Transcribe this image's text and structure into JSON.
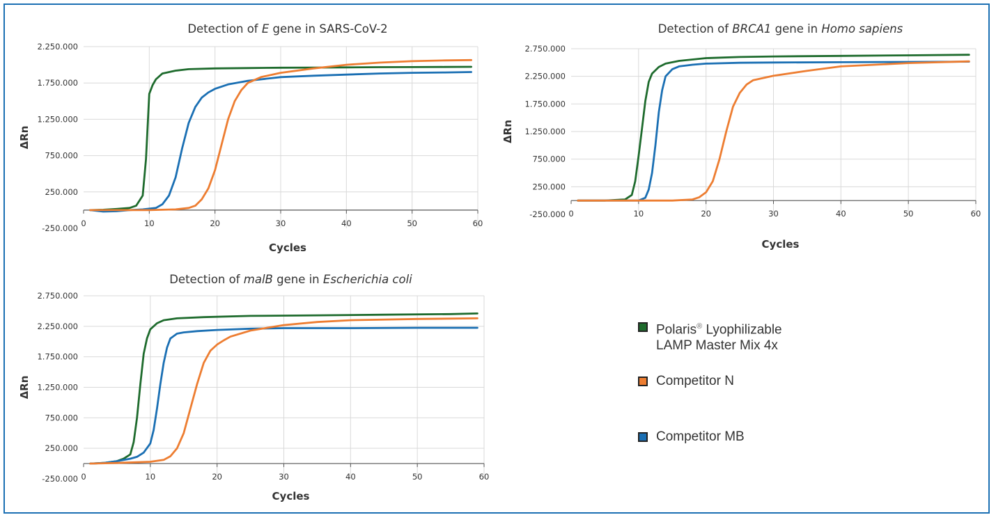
{
  "chart_data": [
    {
      "type": "line",
      "title_parts": [
        {
          "t": "Detection of "
        },
        {
          "t": "E",
          "i": true
        },
        {
          "t": " gene in SARS-CoV-2"
        }
      ],
      "xlabel": "Cycles",
      "ylabel": "ΔRn",
      "xlim": [
        0,
        60
      ],
      "ylim": [
        -250000,
        2250000
      ],
      "xticks": [
        "0",
        "10",
        "20",
        "30",
        "40",
        "50",
        "60"
      ],
      "yticks": [
        "-250.000",
        "250.000",
        "750.000",
        "1.250.000",
        "1.750.000",
        "2.250.000"
      ],
      "grid": true,
      "series": [
        {
          "color": "#1e6b2d",
          "x": [
            1,
            3,
            5,
            7,
            8,
            9,
            9.5,
            10,
            10.5,
            11,
            12,
            14,
            16,
            20,
            25,
            30,
            35,
            40,
            45,
            50,
            55,
            59
          ],
          "y": [
            0,
            5000,
            15000,
            30000,
            60000,
            200000,
            700000,
            1600000,
            1720000,
            1800000,
            1880000,
            1920000,
            1940000,
            1950000,
            1955000,
            1960000,
            1962000,
            1965000,
            1967000,
            1968000,
            1970000,
            1972000
          ]
        },
        {
          "color": "#1a6fb3",
          "x": [
            1,
            3,
            5,
            7,
            9,
            11,
            12,
            13,
            14,
            15,
            16,
            17,
            18,
            19,
            20,
            22,
            25,
            30,
            35,
            40,
            45,
            50,
            55,
            59
          ],
          "y": [
            0,
            -20000,
            -15000,
            0,
            10000,
            30000,
            80000,
            200000,
            450000,
            850000,
            1200000,
            1420000,
            1550000,
            1620000,
            1670000,
            1730000,
            1780000,
            1830000,
            1850000,
            1865000,
            1880000,
            1890000,
            1895000,
            1900000
          ]
        },
        {
          "color": "#ed7d31",
          "x": [
            1,
            5,
            10,
            14,
            16,
            17,
            18,
            19,
            20,
            21,
            22,
            23,
            24,
            25,
            27,
            30,
            35,
            40,
            45,
            50,
            55,
            59
          ],
          "y": [
            0,
            0,
            0,
            10000,
            30000,
            60000,
            150000,
            300000,
            550000,
            900000,
            1250000,
            1500000,
            1650000,
            1750000,
            1830000,
            1890000,
            1950000,
            2000000,
            2030000,
            2050000,
            2060000,
            2065000
          ]
        }
      ]
    },
    {
      "type": "line",
      "title_parts": [
        {
          "t": "Detection of "
        },
        {
          "t": "BRCA1",
          "i": true
        },
        {
          "t": " gene in "
        },
        {
          "t": "Homo sapiens",
          "i": true
        }
      ],
      "xlabel": "Cycles",
      "ylabel": "ΔRn",
      "xlim": [
        0,
        60
      ],
      "ylim": [
        -250000,
        2750000
      ],
      "xticks": [
        "0",
        "10",
        "20",
        "30",
        "40",
        "50",
        "60"
      ],
      "yticks": [
        "-250.000",
        "250.000",
        "750.000",
        "1.250.000",
        "1.750.000",
        "2.250.000",
        "2.750.000"
      ],
      "grid": true,
      "series": [
        {
          "color": "#1e6b2d",
          "x": [
            1,
            5,
            8,
            9,
            9.5,
            10,
            10.5,
            11,
            11.5,
            12,
            13,
            14,
            16,
            20,
            25,
            30,
            40,
            50,
            59
          ],
          "y": [
            0,
            0,
            20000,
            100000,
            350000,
            800000,
            1300000,
            1800000,
            2150000,
            2300000,
            2420000,
            2480000,
            2530000,
            2580000,
            2600000,
            2610000,
            2620000,
            2630000,
            2640000
          ]
        },
        {
          "color": "#1a6fb3",
          "x": [
            1,
            5,
            10,
            11,
            11.5,
            12,
            12.5,
            13,
            13.5,
            14,
            15,
            16,
            18,
            20,
            25,
            30,
            40,
            50,
            59
          ],
          "y": [
            0,
            0,
            0,
            50000,
            200000,
            500000,
            1000000,
            1600000,
            2000000,
            2250000,
            2380000,
            2430000,
            2460000,
            2480000,
            2495000,
            2500000,
            2505000,
            2510000,
            2515000
          ]
        },
        {
          "color": "#ed7d31",
          "x": [
            1,
            10,
            15,
            18,
            19,
            20,
            21,
            22,
            23,
            24,
            25,
            26,
            27,
            30,
            35,
            40,
            50,
            59
          ],
          "y": [
            0,
            0,
            0,
            20000,
            60000,
            150000,
            350000,
            750000,
            1250000,
            1700000,
            1950000,
            2100000,
            2180000,
            2260000,
            2350000,
            2430000,
            2490000,
            2520000
          ]
        }
      ]
    },
    {
      "type": "line",
      "title_parts": [
        {
          "t": "Detection of "
        },
        {
          "t": "malB",
          "i": true
        },
        {
          "t": " gene in "
        },
        {
          "t": "Escherichia coli",
          "i": true
        }
      ],
      "xlabel": "Cycles",
      "ylabel": "ΔRn",
      "xlim": [
        0,
        60
      ],
      "ylim": [
        -250000,
        2750000
      ],
      "xticks": [
        "0",
        "10",
        "20",
        "30",
        "40",
        "50",
        "60"
      ],
      "yticks": [
        "-250.000",
        "250.000",
        "750.000",
        "1.250.000",
        "1.750.000",
        "2.250.000",
        "2.750.000"
      ],
      "grid": true,
      "series": [
        {
          "color": "#1e6b2d",
          "x": [
            1,
            3,
            5,
            6,
            7,
            7.5,
            8,
            8.5,
            9,
            9.5,
            10,
            11,
            12,
            14,
            18,
            25,
            35,
            45,
            55,
            59
          ],
          "y": [
            0,
            10000,
            40000,
            80000,
            150000,
            350000,
            750000,
            1300000,
            1800000,
            2050000,
            2200000,
            2300000,
            2350000,
            2380000,
            2400000,
            2420000,
            2430000,
            2440000,
            2450000,
            2460000
          ]
        },
        {
          "color": "#1a6fb3",
          "x": [
            1,
            3,
            5,
            7,
            8,
            9,
            10,
            10.5,
            11,
            11.5,
            12,
            12.5,
            13,
            14,
            15,
            17,
            20,
            25,
            30,
            40,
            50,
            59
          ],
          "y": [
            0,
            10000,
            40000,
            80000,
            110000,
            180000,
            330000,
            550000,
            900000,
            1300000,
            1650000,
            1900000,
            2050000,
            2130000,
            2150000,
            2170000,
            2190000,
            2210000,
            2220000,
            2220000,
            2225000,
            2225000
          ]
        },
        {
          "color": "#ed7d31",
          "x": [
            1,
            5,
            10,
            12,
            13,
            14,
            15,
            16,
            17,
            18,
            19,
            20,
            21,
            22,
            25,
            30,
            35,
            40,
            50,
            59
          ],
          "y": [
            0,
            10000,
            30000,
            60000,
            120000,
            250000,
            500000,
            900000,
            1300000,
            1650000,
            1850000,
            1950000,
            2020000,
            2080000,
            2180000,
            2270000,
            2320000,
            2350000,
            2370000,
            2380000
          ]
        }
      ]
    }
  ],
  "legend": {
    "items": [
      {
        "label_line1": "Polaris",
        "mark": "®",
        "label_line1_rest": " Lyophilizable",
        "label_line2": "LAMP Master Mix 4x",
        "color": "#1e6b2d",
        "name": "polaris"
      },
      {
        "label_line1": "Competitor N",
        "color": "#ed7d31",
        "name": "competitor-n"
      },
      {
        "label_line1": "Competitor MB",
        "color": "#1a6fb3",
        "name": "competitor-mb"
      }
    ]
  }
}
